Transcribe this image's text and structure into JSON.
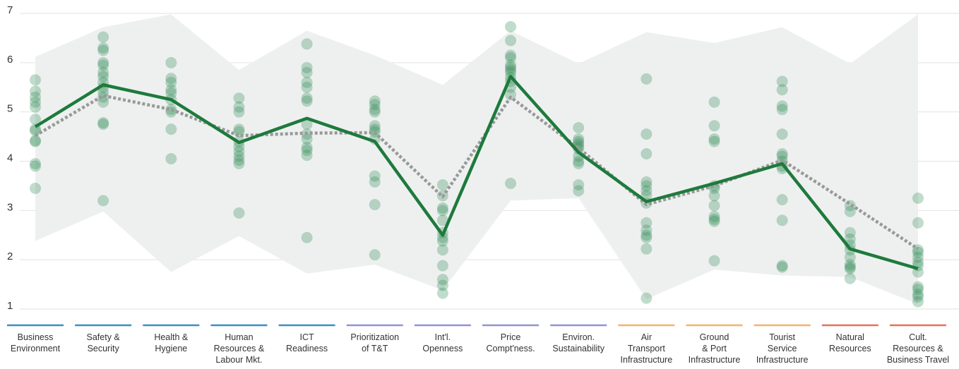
{
  "chart_data": {
    "type": "line",
    "categories": [
      "Business\nEnvironment",
      "Safety &\nSecurity",
      "Health &\nHygiene",
      "Human\nResources &\nLabour Mkt.",
      "ICT\nReadiness",
      "Prioritization\nof T&T",
      "Int'l.\nOpenness",
      "Price\nCompt'ness.",
      "Environ.\nSustainability",
      "Air\nTransport\nInfrastructure",
      "Ground\n& Port\nInfrastructure",
      "Tourist\nService\nInfrastructure",
      "Natural\nResources",
      "Cult.\nResources &\nBusiness Travel"
    ],
    "category_colors": [
      "#3a8fc4",
      "#3a8fc4",
      "#3a8fc4",
      "#3a8fc4",
      "#3a8fc4",
      "#8e95cf",
      "#8e95cf",
      "#8e95cf",
      "#8e95cf",
      "#f5b16e",
      "#f5b16e",
      "#f5b16e",
      "#e8705f",
      "#e8705f"
    ],
    "series": [
      {
        "color": "#1e7a3c",
        "style": "solid",
        "values": [
          4.7,
          5.55,
          5.25,
          4.38,
          4.87,
          4.4,
          2.5,
          5.72,
          4.18,
          3.18,
          3.55,
          3.95,
          2.22,
          1.82
        ]
      },
      {
        "color": "#999999",
        "style": "dotted",
        "values": [
          4.52,
          5.33,
          5.05,
          4.52,
          4.57,
          4.58,
          3.28,
          5.3,
          4.27,
          3.12,
          3.5,
          4.02,
          3.13,
          2.22
        ]
      }
    ],
    "range": {
      "color": "#eef0f0",
      "upper": [
        6.12,
        6.72,
        6.98,
        5.85,
        6.65,
        6.15,
        5.55,
        6.65,
        5.98,
        6.62,
        6.4,
        6.72,
        5.98,
        6.98
      ],
      "lower": [
        2.38,
        2.98,
        1.75,
        2.48,
        1.72,
        1.9,
        1.38,
        3.2,
        3.25,
        1.2,
        1.8,
        1.68,
        1.65,
        1.1
      ]
    },
    "points_color": "#2e8b57",
    "points": [
      [
        5.65,
        5.42,
        5.3,
        5.2,
        5.1,
        4.85,
        4.65,
        4.62,
        4.42,
        4.4,
        3.95,
        3.9,
        3.45
      ],
      [
        6.52,
        6.3,
        6.25,
        6.0,
        5.95,
        5.8,
        5.72,
        5.6,
        5.5,
        5.4,
        5.3,
        5.2,
        4.78,
        4.75,
        3.2
      ],
      [
        6.0,
        5.68,
        5.6,
        5.45,
        5.38,
        5.25,
        5.05,
        5.0,
        4.65,
        4.05
      ],
      [
        5.28,
        5.1,
        5.0,
        4.65,
        4.6,
        4.4,
        4.3,
        4.2,
        4.1,
        4.02,
        3.95,
        2.95
      ],
      [
        6.38,
        5.9,
        5.8,
        5.6,
        5.5,
        5.28,
        5.22,
        4.75,
        4.55,
        4.45,
        4.28,
        4.22,
        4.12,
        2.45
      ],
      [
        5.22,
        5.15,
        5.05,
        5.0,
        4.72,
        4.65,
        4.6,
        4.45,
        3.7,
        3.58,
        3.12,
        2.1
      ],
      [
        3.52,
        3.3,
        3.05,
        3.0,
        2.8,
        2.55,
        2.45,
        2.38,
        2.2,
        1.88,
        1.6,
        1.48,
        1.32
      ],
      [
        6.73,
        6.45,
        6.15,
        6.1,
        5.95,
        5.9,
        5.85,
        5.8,
        5.7,
        5.62,
        5.5,
        5.35,
        3.55
      ],
      [
        4.68,
        4.45,
        4.4,
        4.35,
        4.3,
        4.25,
        4.1,
        4.0,
        3.95,
        3.52,
        3.4
      ],
      [
        5.67,
        4.55,
        4.15,
        3.58,
        3.5,
        3.4,
        3.3,
        3.15,
        2.75,
        2.6,
        2.5,
        2.45,
        2.22,
        1.22
      ],
      [
        5.2,
        4.72,
        4.45,
        4.4,
        3.5,
        3.45,
        3.3,
        3.1,
        2.88,
        2.82,
        2.78,
        1.98
      ],
      [
        5.62,
        5.45,
        5.12,
        5.05,
        4.55,
        4.15,
        4.1,
        4.0,
        3.9,
        3.85,
        3.22,
        2.8,
        1.88,
        1.85
      ],
      [
        3.1,
        2.98,
        2.55,
        2.42,
        2.3,
        2.2,
        2.05,
        1.9,
        1.85,
        1.82,
        1.62
      ],
      [
        3.25,
        2.75,
        2.2,
        2.15,
        2.05,
        1.95,
        1.88,
        1.75,
        1.45,
        1.4,
        1.3,
        1.25,
        1.15
      ]
    ],
    "ylim": [
      1,
      7
    ],
    "yticks": [
      1,
      2,
      3,
      4,
      5,
      6,
      7
    ],
    "grid": true
  }
}
